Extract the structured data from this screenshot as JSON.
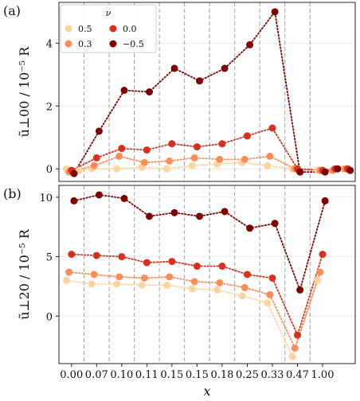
{
  "chart_data": [
    {
      "panel_label": "(a)",
      "type": "line",
      "ylabel": "ũ⊥00 / 10⁻⁵ R",
      "ylim": [
        -0.4,
        5.3
      ],
      "yticks": [
        0,
        2,
        4
      ],
      "grid": true,
      "legend": {
        "title": "ν",
        "entries": [
          "0.5",
          "0.3",
          "0.0",
          "−0.5"
        ],
        "placement": "top-left"
      },
      "series": [
        {
          "name": "0.5",
          "color": "#fdd49e",
          "x": [
            0.3,
            0.8,
            1.3,
            2.3,
            3.3,
            4.3,
            5.3,
            6.3,
            7.3,
            8.3,
            9.3,
            10.3,
            11.3
          ],
          "y": [
            0.0,
            -0.05,
            0.0,
            0.0,
            0.05,
            0.0,
            0.1,
            0.15,
            0.2,
            0.1,
            0.0,
            -0.05,
            0.0
          ]
        },
        {
          "name": "0.3",
          "color": "#fc8d59",
          "x": [
            0.4,
            1.4,
            2.4,
            3.4,
            4.4,
            5.4,
            6.4,
            7.4,
            8.4,
            9.4,
            10.4,
            10.9,
            11.4
          ],
          "y": [
            -0.1,
            0.1,
            0.4,
            0.2,
            0.25,
            0.35,
            0.3,
            0.3,
            0.4,
            0.0,
            -0.05,
            -0.05,
            0.0
          ]
        },
        {
          "name": "0.0",
          "color": "#d7301f",
          "x": [
            0.5,
            1.5,
            2.5,
            3.5,
            4.5,
            5.5,
            6.5,
            7.5,
            8.5,
            9.5,
            10.5,
            11.0,
            11.5
          ],
          "y": [
            -0.05,
            0.35,
            0.65,
            0.6,
            0.8,
            0.7,
            0.8,
            1.05,
            1.3,
            0.0,
            -0.05,
            0.0,
            0.0
          ]
        },
        {
          "name": "−0.5",
          "color": "#7f0000",
          "x": [
            0.6,
            1.6,
            2.6,
            3.6,
            4.6,
            5.6,
            6.6,
            7.6,
            8.6,
            9.6,
            10.6,
            11.1,
            11.6
          ],
          "y": [
            -0.15,
            1.2,
            2.5,
            2.45,
            3.2,
            2.8,
            3.2,
            3.95,
            5.0,
            -0.1,
            -0.1,
            0.0,
            -0.05
          ]
        }
      ]
    },
    {
      "panel_label": "(b)",
      "type": "line",
      "ylabel": "ũ⊥20 / 10⁻⁵ R",
      "xlabel": "x",
      "ylim": [
        -4.0,
        11.0
      ],
      "yticks": [
        0,
        5,
        10
      ],
      "x_tick_labels": [
        "0.00",
        "0.07",
        "0.10",
        "0.11",
        "0.15",
        "0.15",
        "0.18",
        "0.25",
        "0.33",
        "0.47",
        "1.00"
      ],
      "grid": true,
      "series": [
        {
          "name": "0.5",
          "color": "#fdd49e",
          "x": [
            0.3,
            1.3,
            2.3,
            3.3,
            4.3,
            5.3,
            6.3,
            7.3,
            8.3,
            9.3,
            10.3
          ],
          "y": [
            3.0,
            2.7,
            2.7,
            2.6,
            2.6,
            2.3,
            2.2,
            1.7,
            1.1,
            -3.4,
            3.0
          ]
        },
        {
          "name": "0.3",
          "color": "#fc8d59",
          "x": [
            0.4,
            1.4,
            2.4,
            3.4,
            4.4,
            5.4,
            6.4,
            7.4,
            8.4,
            9.4,
            10.4
          ],
          "y": [
            3.7,
            3.5,
            3.3,
            3.2,
            3.3,
            2.9,
            2.8,
            2.4,
            1.8,
            -2.7,
            3.7
          ]
        },
        {
          "name": "0.0",
          "color": "#d7301f",
          "x": [
            0.5,
            1.5,
            2.5,
            3.5,
            4.5,
            5.5,
            6.5,
            7.5,
            8.5,
            9.5,
            10.5
          ],
          "y": [
            5.2,
            5.1,
            5.0,
            4.5,
            4.6,
            4.2,
            4.2,
            3.5,
            3.2,
            -1.6,
            5.2
          ]
        },
        {
          "name": "−0.5",
          "color": "#7f0000",
          "x": [
            0.6,
            1.6,
            2.6,
            3.6,
            4.6,
            5.6,
            6.6,
            7.6,
            8.6,
            9.6,
            10.6
          ],
          "y": [
            9.7,
            10.2,
            9.9,
            8.4,
            8.7,
            8.4,
            8.8,
            7.4,
            7.8,
            2.2,
            9.7
          ]
        }
      ]
    }
  ]
}
